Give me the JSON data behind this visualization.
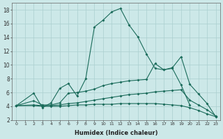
{
  "xlabel": "Humidex (Indice chaleur)",
  "bg_color": "#cce8e8",
  "grid_color": "#aacfcf",
  "line_color": "#1a6b5a",
  "xlim": [
    -0.5,
    23.5
  ],
  "ylim": [
    2,
    19
  ],
  "yticks": [
    2,
    4,
    6,
    8,
    10,
    12,
    14,
    16,
    18
  ],
  "line1_x": [
    0,
    2,
    3,
    4,
    5,
    6,
    7,
    8,
    9,
    10,
    11,
    12,
    13,
    14,
    15,
    16,
    17,
    18,
    19,
    20
  ],
  "line1_y": [
    4.1,
    5.9,
    3.8,
    4.5,
    6.6,
    7.3,
    5.5,
    8.0,
    15.5,
    16.5,
    17.7,
    18.2,
    15.8,
    14.1,
    11.6,
    9.5,
    9.3,
    9.5,
    7.1,
    4.2
  ],
  "line2_x": [
    0,
    2,
    3,
    4,
    5,
    6,
    7,
    8,
    9,
    10,
    11,
    12,
    13,
    14,
    15,
    16,
    17,
    18,
    19,
    20,
    21,
    22,
    23
  ],
  "line2_y": [
    4.1,
    4.8,
    4.2,
    4.2,
    4.5,
    5.9,
    6.0,
    6.2,
    6.5,
    7.0,
    7.3,
    7.5,
    7.7,
    7.8,
    7.9,
    10.2,
    9.3,
    9.6,
    11.2,
    7.2,
    5.8,
    4.4,
    2.5
  ],
  "line3_x": [
    0,
    2,
    3,
    4,
    5,
    6,
    7,
    8,
    9,
    10,
    11,
    12,
    13,
    14,
    15,
    16,
    17,
    18,
    19,
    20,
    21,
    22,
    23
  ],
  "line3_y": [
    4.1,
    4.2,
    4.1,
    4.1,
    4.2,
    4.4,
    4.5,
    4.7,
    4.9,
    5.1,
    5.3,
    5.5,
    5.7,
    5.8,
    5.9,
    6.1,
    6.2,
    6.3,
    6.4,
    4.9,
    4.2,
    3.5,
    2.6
  ],
  "line4_x": [
    0,
    2,
    3,
    4,
    5,
    6,
    7,
    8,
    9,
    10,
    11,
    12,
    13,
    14,
    15,
    16,
    17,
    18,
    19,
    20,
    21,
    22,
    23
  ],
  "line4_y": [
    4.1,
    4.1,
    4.0,
    4.0,
    4.0,
    4.1,
    4.2,
    4.2,
    4.3,
    4.3,
    4.3,
    4.4,
    4.4,
    4.4,
    4.4,
    4.4,
    4.3,
    4.2,
    4.1,
    3.8,
    3.4,
    2.9,
    2.5
  ]
}
